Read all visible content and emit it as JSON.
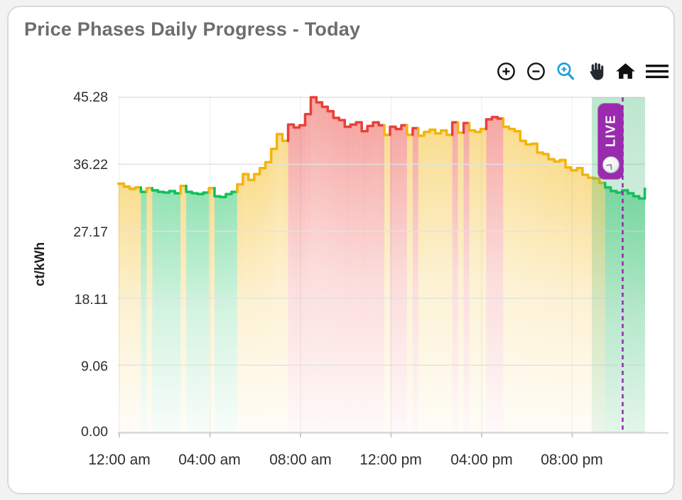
{
  "card": {
    "title": "Price Phases Daily Progress - Today"
  },
  "toolbar": {
    "icons": [
      {
        "name": "zoom-in-icon"
      },
      {
        "name": "zoom-out-icon"
      },
      {
        "name": "selection-zoom-icon",
        "accent": "#1b9ed9"
      },
      {
        "name": "pan-hand-icon"
      },
      {
        "name": "home-reset-icon"
      },
      {
        "name": "menu-icon"
      }
    ]
  },
  "live_badge": {
    "label": "LIVE",
    "color": "#9a2bae",
    "clock_icon": "clock-icon"
  },
  "chart_data": {
    "type": "area",
    "subtype": "step-line-phases",
    "title": "Price Phases Daily Progress - Today",
    "xlabel": "",
    "ylabel": "ct/kWh",
    "ylim": [
      0,
      45.28
    ],
    "grid": true,
    "yticks": [
      "45.28",
      "36.22",
      "27.17",
      "18.11",
      "9.06",
      "0.00"
    ],
    "xticks": [
      "12:00 am",
      "04:00 am",
      "08:00 am",
      "12:00 pm",
      "04:00 pm",
      "08:00 pm"
    ],
    "phase_colors": {
      "green": "#10c05a",
      "yellow": "#f2b50d",
      "red": "#ea4038"
    },
    "live_window": {
      "start": "21:00",
      "end": "23:30",
      "fill": "#34b36a"
    },
    "now_line": {
      "time": "22:15",
      "color": "#8e24aa",
      "style": "dashed"
    },
    "point_format": [
      "time",
      "ct_per_kwh",
      "phase(g/y/r)"
    ],
    "points": [
      [
        "00:00",
        33.6,
        "y"
      ],
      [
        "00:15",
        33.2,
        "y"
      ],
      [
        "00:30",
        32.9,
        "y"
      ],
      [
        "00:45",
        33.1,
        "y"
      ],
      [
        "01:00",
        32.5,
        "g"
      ],
      [
        "01:15",
        33.0,
        "y"
      ],
      [
        "01:30",
        32.7,
        "g"
      ],
      [
        "01:45",
        32.5,
        "g"
      ],
      [
        "02:00",
        32.4,
        "g"
      ],
      [
        "02:15",
        32.6,
        "g"
      ],
      [
        "02:30",
        32.3,
        "g"
      ],
      [
        "02:45",
        33.3,
        "y"
      ],
      [
        "03:00",
        32.5,
        "g"
      ],
      [
        "03:15",
        32.3,
        "g"
      ],
      [
        "03:30",
        32.2,
        "g"
      ],
      [
        "03:45",
        32.4,
        "g"
      ],
      [
        "04:00",
        33.0,
        "y"
      ],
      [
        "04:15",
        31.9,
        "g"
      ],
      [
        "04:30",
        31.8,
        "g"
      ],
      [
        "04:45",
        32.2,
        "g"
      ],
      [
        "05:00",
        32.5,
        "g"
      ],
      [
        "05:15",
        33.5,
        "y"
      ],
      [
        "05:30",
        34.9,
        "y"
      ],
      [
        "05:45",
        34.1,
        "y"
      ],
      [
        "06:00",
        34.9,
        "y"
      ],
      [
        "06:15",
        35.7,
        "y"
      ],
      [
        "06:30",
        36.5,
        "y"
      ],
      [
        "06:45",
        38.3,
        "y"
      ],
      [
        "07:00",
        40.3,
        "y"
      ],
      [
        "07:15",
        39.4,
        "y"
      ],
      [
        "07:30",
        41.6,
        "r"
      ],
      [
        "07:45",
        41.2,
        "r"
      ],
      [
        "08:00",
        41.5,
        "r"
      ],
      [
        "08:15",
        43.0,
        "r"
      ],
      [
        "08:30",
        45.28,
        "r"
      ],
      [
        "08:45",
        44.6,
        "r"
      ],
      [
        "09:00",
        44.0,
        "r"
      ],
      [
        "09:15",
        43.4,
        "r"
      ],
      [
        "09:30",
        42.5,
        "r"
      ],
      [
        "09:45",
        42.2,
        "r"
      ],
      [
        "10:00",
        41.3,
        "r"
      ],
      [
        "10:15",
        41.6,
        "r"
      ],
      [
        "10:30",
        41.9,
        "r"
      ],
      [
        "10:45",
        40.7,
        "r"
      ],
      [
        "11:00",
        41.4,
        "r"
      ],
      [
        "11:15",
        41.9,
        "r"
      ],
      [
        "11:30",
        41.5,
        "r"
      ],
      [
        "11:45",
        40.2,
        "y"
      ],
      [
        "12:00",
        41.3,
        "r"
      ],
      [
        "12:15",
        41.0,
        "r"
      ],
      [
        "12:30",
        41.5,
        "r"
      ],
      [
        "12:45",
        40.2,
        "y"
      ],
      [
        "13:00",
        41.1,
        "r"
      ],
      [
        "13:15",
        40.1,
        "y"
      ],
      [
        "13:30",
        40.6,
        "y"
      ],
      [
        "13:45",
        40.9,
        "y"
      ],
      [
        "14:00",
        40.4,
        "y"
      ],
      [
        "14:15",
        40.8,
        "y"
      ],
      [
        "14:30",
        40.2,
        "y"
      ],
      [
        "14:45",
        41.9,
        "r"
      ],
      [
        "15:00",
        40.5,
        "y"
      ],
      [
        "15:15",
        41.8,
        "r"
      ],
      [
        "15:30",
        40.8,
        "y"
      ],
      [
        "15:45",
        40.6,
        "y"
      ],
      [
        "16:00",
        41.0,
        "y"
      ],
      [
        "16:15",
        42.3,
        "r"
      ],
      [
        "16:30",
        42.6,
        "r"
      ],
      [
        "16:45",
        42.4,
        "r"
      ],
      [
        "17:00",
        41.3,
        "y"
      ],
      [
        "17:15",
        41.0,
        "y"
      ],
      [
        "17:30",
        40.7,
        "y"
      ],
      [
        "17:45",
        39.4,
        "y"
      ],
      [
        "18:00",
        38.9,
        "y"
      ],
      [
        "18:15",
        39.0,
        "y"
      ],
      [
        "18:30",
        37.8,
        "y"
      ],
      [
        "18:45",
        37.6,
        "y"
      ],
      [
        "19:00",
        36.9,
        "y"
      ],
      [
        "19:15",
        36.6,
        "y"
      ],
      [
        "19:30",
        36.8,
        "y"
      ],
      [
        "19:45",
        35.8,
        "y"
      ],
      [
        "20:00",
        35.4,
        "y"
      ],
      [
        "20:15",
        35.7,
        "y"
      ],
      [
        "20:30",
        34.8,
        "y"
      ],
      [
        "20:45",
        34.4,
        "y"
      ],
      [
        "21:00",
        34.3,
        "y"
      ],
      [
        "21:15",
        33.7,
        "y"
      ],
      [
        "21:30",
        33.1,
        "g"
      ],
      [
        "21:45",
        32.6,
        "g"
      ],
      [
        "22:00",
        32.4,
        "g"
      ],
      [
        "22:15",
        32.7,
        "g"
      ],
      [
        "22:30",
        32.3,
        "g"
      ],
      [
        "22:45",
        31.9,
        "g"
      ],
      [
        "23:00",
        31.6,
        "g"
      ],
      [
        "23:15",
        32.9,
        "g"
      ]
    ]
  }
}
